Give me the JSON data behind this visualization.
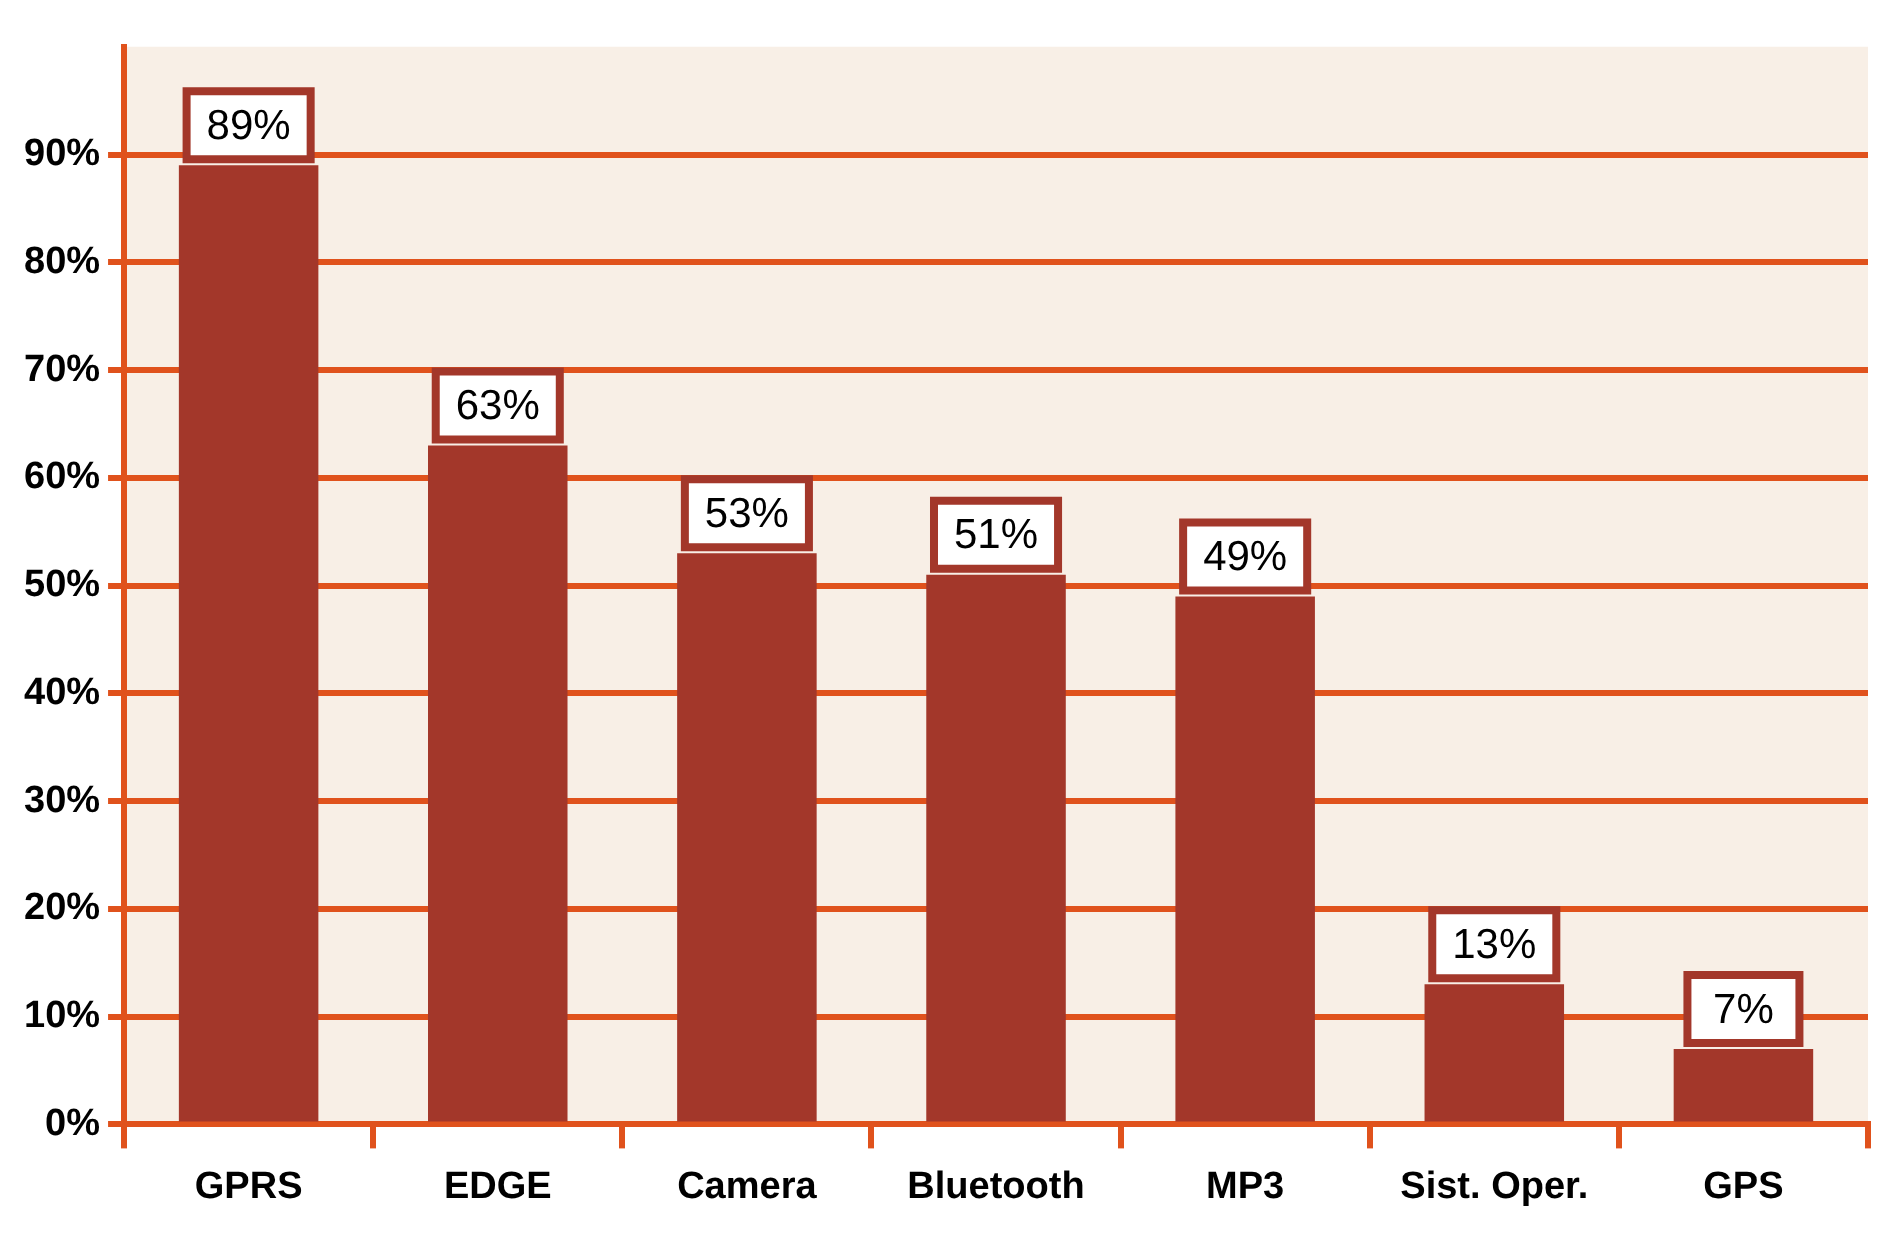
{
  "chart_data": {
    "type": "bar",
    "categories": [
      "GPRS",
      "EDGE",
      "Camera",
      "Bluetooth",
      "MP3",
      "Sist. Oper.",
      "GPS"
    ],
    "values": [
      89,
      63,
      53,
      51,
      49,
      13,
      7
    ],
    "value_labels": [
      "89%",
      "63%",
      "53%",
      "51%",
      "49%",
      "13%",
      "7%"
    ],
    "color": "#a3372a",
    "ylim": [
      0,
      100
    ],
    "yticks": [
      {
        "value": 0,
        "label": "0%"
      },
      {
        "value": 10,
        "label": "10%"
      },
      {
        "value": 20,
        "label": "20%"
      },
      {
        "value": 30,
        "label": "30%"
      },
      {
        "value": 40,
        "label": "40%"
      },
      {
        "value": 50,
        "label": "50%"
      },
      {
        "value": 60,
        "label": "60%"
      },
      {
        "value": 70,
        "label": "70%"
      },
      {
        "value": 80,
        "label": "80%"
      },
      {
        "value": 90,
        "label": "90%"
      }
    ],
    "grid": "y"
  }
}
